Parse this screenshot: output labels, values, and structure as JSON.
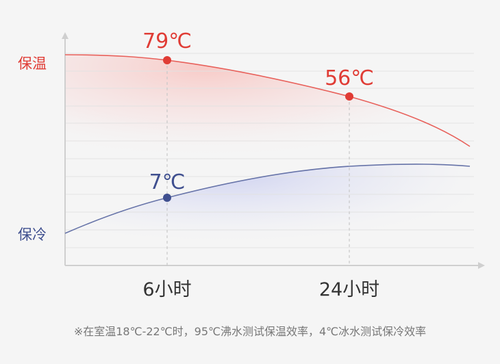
{
  "chart_data": {
    "type": "line",
    "categories": [
      "6小时",
      "24小时"
    ],
    "series": [
      {
        "name": "保温",
        "color": "#e03c35",
        "values": [
          79,
          56
        ],
        "labels": [
          "79℃",
          "56℃"
        ]
      },
      {
        "name": "保冷",
        "color": "#4a5b99",
        "values": [
          7,
          null
        ],
        "labels": [
          "7℃",
          ""
        ]
      }
    ],
    "title": "",
    "xlabel": "",
    "ylabel": "",
    "grid": true,
    "footnote": "※在室温18℃-22℃时，95℃沸水测试保温效率，4℃冰水测试保冷效率"
  }
}
